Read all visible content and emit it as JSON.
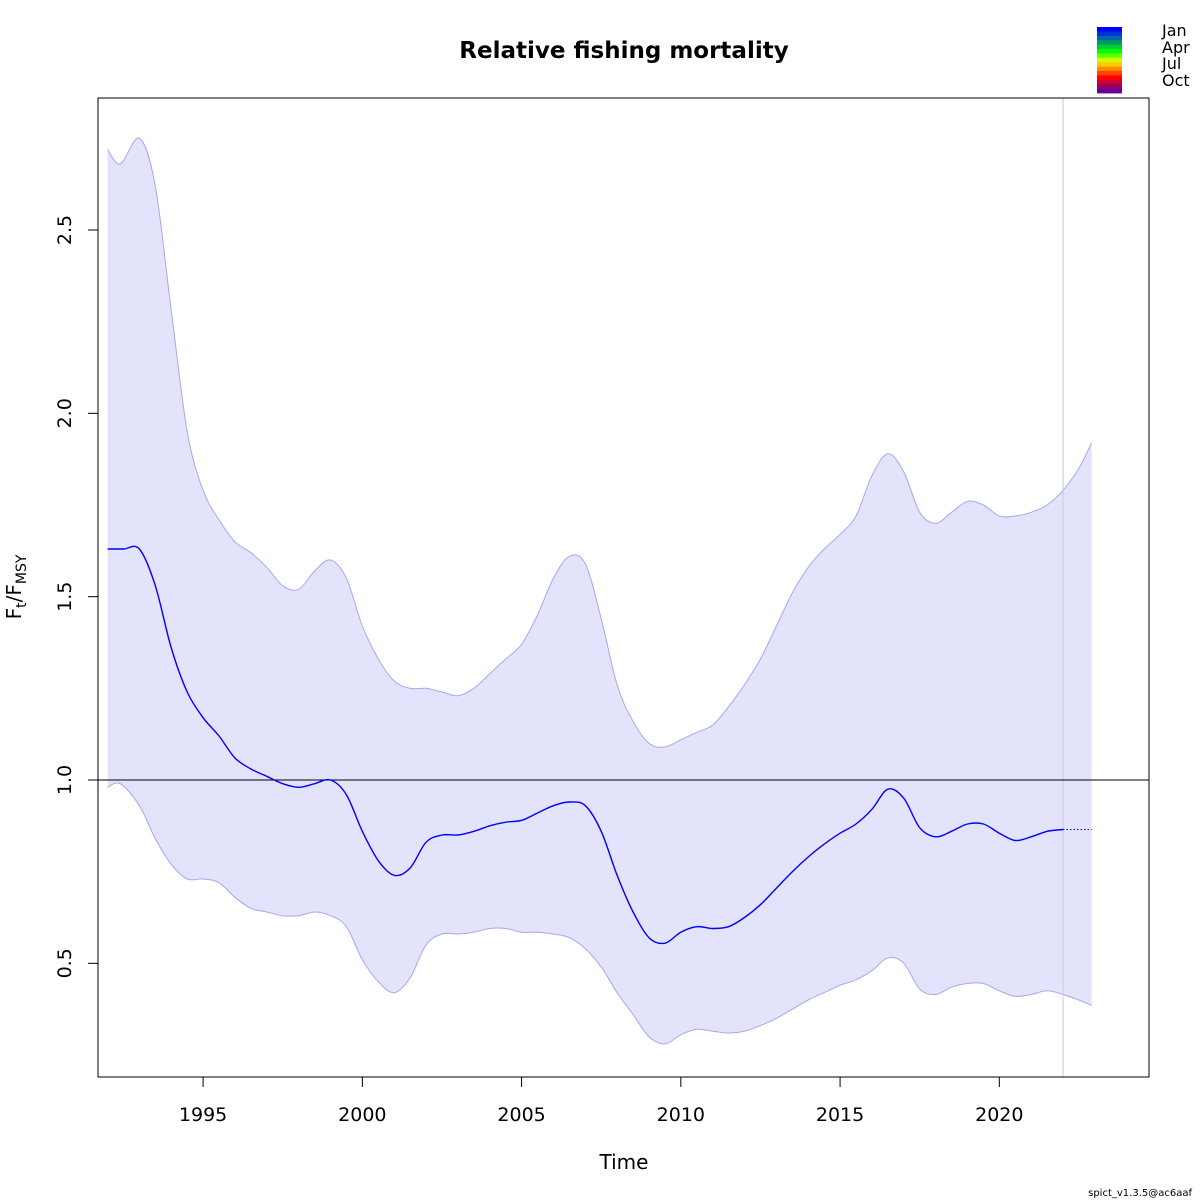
{
  "chart_data": {
    "type": "line",
    "title": "Relative fishing mortality",
    "xlabel": "Time",
    "ylabel": {
      "main": "F",
      "sub1": "t",
      "slash": "/F",
      "sub2": "MSY"
    },
    "xlim": [
      1991.7,
      2024.7
    ],
    "ylim": [
      0.19,
      2.86
    ],
    "xticks": [
      1995,
      2000,
      2005,
      2010,
      2015,
      2020
    ],
    "yticks": [
      0.5,
      1.0,
      1.5,
      2.0,
      2.5
    ],
    "ytick_labels": [
      "0.5",
      "1.0",
      "1.5",
      "2.0",
      "2.5"
    ],
    "reference_line": 1.0,
    "last_observation": 2022.0,
    "colors": {
      "estimate": "#0000ff",
      "ci_fill": "#e3e3fc",
      "ci_line": "#a8a8ec",
      "ref_line": "#000000",
      "vline": "#c8c8e0"
    },
    "series": [
      {
        "role": "estimate",
        "x": [
          1992.0,
          1992.5,
          1993.0,
          1993.5,
          1994.0,
          1994.5,
          1995.0,
          1995.5,
          1996.0,
          1996.5,
          1997.0,
          1997.5,
          1998.0,
          1998.5,
          1999.0,
          1999.5,
          2000.0,
          2000.5,
          2001.0,
          2001.5,
          2002.0,
          2002.5,
          2003.0,
          2003.5,
          2004.0,
          2004.5,
          2005.0,
          2005.5,
          2006.0,
          2006.5,
          2007.0,
          2007.5,
          2008.0,
          2008.5,
          2009.0,
          2009.5,
          2010.0,
          2010.5,
          2011.0,
          2011.5,
          2012.0,
          2012.5,
          2013.0,
          2013.5,
          2014.0,
          2014.5,
          2015.0,
          2015.5,
          2016.0,
          2016.5,
          2017.0,
          2017.5,
          2018.0,
          2018.5,
          2019.0,
          2019.5,
          2020.0,
          2020.5,
          2021.0,
          2021.5,
          2022.0
        ],
        "y": [
          1.63,
          1.63,
          1.63,
          1.53,
          1.36,
          1.24,
          1.17,
          1.12,
          1.06,
          1.03,
          1.01,
          0.99,
          0.98,
          0.99,
          1.0,
          0.96,
          0.86,
          0.78,
          0.74,
          0.76,
          0.83,
          0.85,
          0.85,
          0.86,
          0.875,
          0.885,
          0.89,
          0.91,
          0.93,
          0.94,
          0.93,
          0.86,
          0.74,
          0.64,
          0.57,
          0.555,
          0.585,
          0.6,
          0.595,
          0.6,
          0.625,
          0.66,
          0.705,
          0.75,
          0.79,
          0.825,
          0.855,
          0.88,
          0.92,
          0.975,
          0.95,
          0.87,
          0.845,
          0.86,
          0.88,
          0.88,
          0.855,
          0.835,
          0.845,
          0.86,
          0.865
        ]
      },
      {
        "role": "forecast",
        "x": [
          2022.0,
          2022.9
        ],
        "y": [
          0.865,
          0.865
        ]
      },
      {
        "role": "upper_ci",
        "x": [
          1992.0,
          1992.4,
          1993.0,
          1993.5,
          1994.0,
          1994.5,
          1995.0,
          1995.5,
          1996.0,
          1996.5,
          1997.0,
          1997.5,
          1998.0,
          1998.5,
          1999.0,
          1999.5,
          2000.0,
          2000.5,
          2001.0,
          2001.5,
          2002.0,
          2002.5,
          2003.0,
          2003.5,
          2004.0,
          2004.5,
          2005.0,
          2005.5,
          2006.0,
          2006.5,
          2007.0,
          2007.5,
          2008.0,
          2008.5,
          2009.0,
          2009.5,
          2010.0,
          2010.5,
          2011.0,
          2011.5,
          2012.0,
          2012.5,
          2013.0,
          2013.5,
          2014.0,
          2014.5,
          2015.0,
          2015.5,
          2016.0,
          2016.5,
          2017.0,
          2017.5,
          2018.0,
          2018.5,
          2019.0,
          2019.5,
          2020.0,
          2020.5,
          2021.0,
          2021.5,
          2022.0,
          2022.5,
          2022.9
        ],
        "y": [
          2.72,
          2.68,
          2.75,
          2.62,
          2.28,
          1.95,
          1.79,
          1.71,
          1.65,
          1.62,
          1.58,
          1.53,
          1.52,
          1.57,
          1.6,
          1.55,
          1.42,
          1.33,
          1.27,
          1.25,
          1.25,
          1.24,
          1.23,
          1.25,
          1.29,
          1.33,
          1.37,
          1.45,
          1.55,
          1.61,
          1.59,
          1.44,
          1.26,
          1.16,
          1.1,
          1.09,
          1.11,
          1.13,
          1.15,
          1.2,
          1.26,
          1.33,
          1.42,
          1.51,
          1.58,
          1.63,
          1.67,
          1.72,
          1.83,
          1.89,
          1.84,
          1.73,
          1.7,
          1.73,
          1.76,
          1.75,
          1.72,
          1.72,
          1.73,
          1.75,
          1.79,
          1.85,
          1.92
        ]
      },
      {
        "role": "lower_ci",
        "x": [
          1992.0,
          1992.4,
          1993.0,
          1993.5,
          1994.0,
          1994.5,
          1995.0,
          1995.5,
          1996.0,
          1996.5,
          1997.0,
          1997.5,
          1998.0,
          1998.5,
          1999.0,
          1999.5,
          2000.0,
          2000.5,
          2001.0,
          2001.5,
          2002.0,
          2002.5,
          2003.0,
          2003.5,
          2004.0,
          2004.5,
          2005.0,
          2005.5,
          2006.0,
          2006.5,
          2007.0,
          2007.5,
          2008.0,
          2008.5,
          2009.0,
          2009.5,
          2010.0,
          2010.5,
          2011.0,
          2011.5,
          2012.0,
          2012.5,
          2013.0,
          2013.5,
          2014.0,
          2014.5,
          2015.0,
          2015.5,
          2016.0,
          2016.5,
          2017.0,
          2017.5,
          2018.0,
          2018.5,
          2019.0,
          2019.5,
          2020.0,
          2020.5,
          2021.0,
          2021.5,
          2022.0,
          2022.5,
          2022.9
        ],
        "y": [
          0.98,
          0.99,
          0.93,
          0.84,
          0.77,
          0.73,
          0.73,
          0.72,
          0.68,
          0.65,
          0.64,
          0.63,
          0.63,
          0.64,
          0.63,
          0.6,
          0.51,
          0.45,
          0.42,
          0.46,
          0.55,
          0.58,
          0.58,
          0.585,
          0.595,
          0.595,
          0.585,
          0.585,
          0.58,
          0.57,
          0.54,
          0.49,
          0.42,
          0.36,
          0.3,
          0.28,
          0.305,
          0.32,
          0.315,
          0.31,
          0.315,
          0.33,
          0.35,
          0.375,
          0.4,
          0.42,
          0.44,
          0.455,
          0.48,
          0.515,
          0.5,
          0.43,
          0.415,
          0.435,
          0.445,
          0.445,
          0.425,
          0.41,
          0.415,
          0.425,
          0.415,
          0.4,
          0.385
        ]
      }
    ]
  },
  "legend": {
    "labels": [
      "Jan",
      "Apr",
      "Jul",
      "Oct"
    ],
    "colors": [
      "#0000ff",
      "#0033d6",
      "#0066aa",
      "#009966",
      "#00cc33",
      "#00ff00",
      "#66ff00",
      "#ccff00",
      "#ffcc00",
      "#ff8800",
      "#ff4400",
      "#ff0000",
      "#cc0033",
      "#990066",
      "#660099"
    ]
  },
  "footer": "spict_v1.3.5@ac6aaf"
}
